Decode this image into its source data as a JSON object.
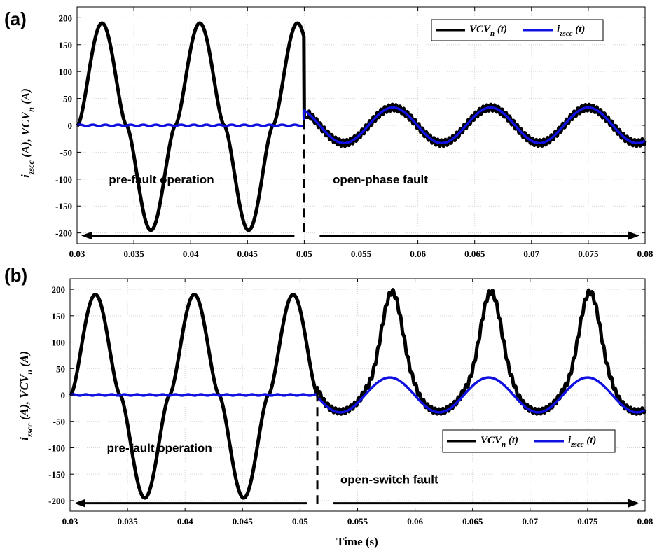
{
  "chart_data": [
    {
      "type": "line",
      "panel_label": "(a)",
      "ylabel": "i_zscc (A), VCV_n (A)",
      "xlabel": "",
      "xlim": [
        0.03,
        0.08
      ],
      "ylim": [
        -220,
        220
      ],
      "xticks": [
        "0.03",
        "0.035",
        "0.04",
        "0.045",
        "0.05",
        "0.055",
        "0.06",
        "0.065",
        "0.07",
        "0.075",
        "0.08"
      ],
      "yticks": [
        "200",
        "150",
        "100",
        "50",
        "0",
        "-50",
        "-100",
        "-150",
        "-200"
      ],
      "grid": true,
      "fault_time": 0.05,
      "legend": {
        "position": "top-right",
        "entries": [
          {
            "main": "VCV",
            "sub": "n",
            "suffix": " (t)",
            "color": "#000000"
          },
          {
            "main": "i",
            "sub": "zscc",
            "suffix": " (t)",
            "color": "#1010e0"
          }
        ]
      },
      "annotations": [
        {
          "text": "pre-fault operation",
          "x": 0.0328,
          "y": -100
        },
        {
          "text": "open-phase fault",
          "x": 0.0525,
          "y": -100
        }
      ],
      "series": [
        {
          "name": "VCV_n (t)",
          "color": "#000000",
          "pre_fault": {
            "amplitude_peak": 190,
            "amplitude_trough": -195,
            "period": 0.0086,
            "first_peak": 0.0322
          },
          "post_fault": {
            "pulse_peak": 33,
            "baseline": 0
          }
        },
        {
          "name": "i_zscc (t)",
          "color": "#1010e0",
          "pre_fault": {
            "value": 0
          },
          "post_fault": {
            "amplitude": 33,
            "period": 0.0086,
            "first_peak": 0.0578
          }
        }
      ]
    },
    {
      "type": "line",
      "panel_label": "(b)",
      "ylabel": "i_zscc (A), VCV_n (A)",
      "xlabel": "Time (s)",
      "xlim": [
        0.03,
        0.08
      ],
      "ylim": [
        -220,
        220
      ],
      "xticks": [
        "0.03",
        "0.035",
        "0.04",
        "0.045",
        "0.05",
        "0.055",
        "0.06",
        "0.065",
        "0.07",
        "0.075",
        "0.08"
      ],
      "yticks": [
        "200",
        "150",
        "100",
        "50",
        "0",
        "-50",
        "-100",
        "-150",
        "-200"
      ],
      "grid": true,
      "fault_time": 0.0515,
      "legend": {
        "position": "middle-right",
        "entries": [
          {
            "main": "VCV",
            "sub": "n",
            "suffix": " (t)",
            "color": "#000000"
          },
          {
            "main": "i",
            "sub": "zscc",
            "suffix": " (t)",
            "color": "#1010e0"
          }
        ]
      },
      "annotations": [
        {
          "text": "pre-fault operation",
          "x": 0.0332,
          "y": -100
        },
        {
          "text": "open-switch fault",
          "x": 0.0535,
          "y": -160
        }
      ],
      "series": [
        {
          "name": "VCV_n (t)",
          "color": "#000000",
          "pre_fault": {
            "amplitude_peak": 190,
            "amplitude_trough": -195,
            "period": 0.0086,
            "first_peak": 0.0322
          },
          "post_fault": {
            "pulse_peak": 195,
            "baseline": 0
          }
        },
        {
          "name": "i_zscc (t)",
          "color": "#1010e0",
          "pre_fault": {
            "value": 0
          },
          "post_fault": {
            "amplitude": 33,
            "period": 0.0086,
            "first_peak": 0.0578
          }
        }
      ]
    }
  ]
}
